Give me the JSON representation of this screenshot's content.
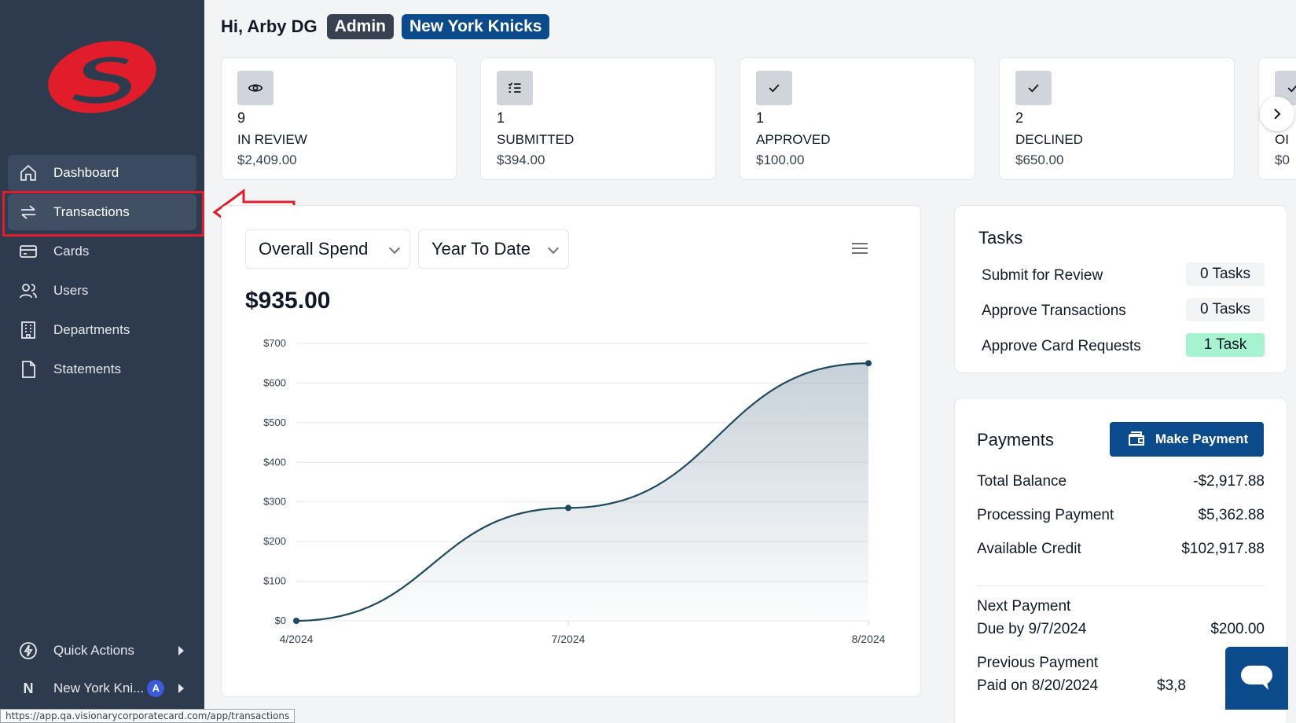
{
  "sidebar": {
    "nav": [
      {
        "label": "Dashboard",
        "icon": "home-icon"
      },
      {
        "label": "Transactions",
        "icon": "swap-arrows-icon"
      },
      {
        "label": "Cards",
        "icon": "card-icon"
      },
      {
        "label": "Users",
        "icon": "users-icon"
      },
      {
        "label": "Departments",
        "icon": "building-icon"
      },
      {
        "label": "Statements",
        "icon": "document-icon"
      }
    ],
    "quick_actions": "Quick Actions",
    "org_initial": "N",
    "org_name": "New York Kni...",
    "org_badge": "A"
  },
  "status_url": "https://app.qa.visionarycorporatecard.com/app/transactions",
  "header": {
    "greeting": "Hi, Arby DG",
    "role": "Admin",
    "team": "New York Knicks"
  },
  "stats": [
    {
      "count": "9",
      "label": "IN REVIEW",
      "amount": "$2,409.00",
      "icon": "eye-icon"
    },
    {
      "count": "1",
      "label": "SUBMITTED",
      "amount": "$394.00",
      "icon": "list-check-icon"
    },
    {
      "count": "1",
      "label": "APPROVED",
      "amount": "$100.00",
      "icon": "check-icon"
    },
    {
      "count": "2",
      "label": "DECLINED",
      "amount": "$650.00",
      "icon": "check-icon"
    },
    {
      "count": "",
      "label": "OI",
      "amount": "$0",
      "icon": "check-icon"
    }
  ],
  "spend": {
    "metric_select": "Overall Spend",
    "period_select": "Year To Date",
    "total": "$935.00"
  },
  "chart_data": {
    "type": "area",
    "x": [
      "4/2024",
      "7/2024",
      "8/2024"
    ],
    "values": [
      0,
      285,
      650
    ],
    "yticks": [
      "$0",
      "$100",
      "$200",
      "$300",
      "$400",
      "$500",
      "$600",
      "$700"
    ],
    "ylim": [
      0,
      700
    ],
    "grid": true,
    "line_color": "#1d4a5e"
  },
  "tasks": {
    "title": "Tasks",
    "items": [
      {
        "label": "Submit for Review",
        "value": "0 Tasks"
      },
      {
        "label": "Approve Transactions",
        "value": "0 Tasks"
      },
      {
        "label": "Approve Card Requests",
        "value": "1 Task"
      }
    ]
  },
  "payments": {
    "title": "Payments",
    "button": "Make Payment",
    "rows": [
      {
        "label": "Total Balance",
        "value": "-$2,917.88"
      },
      {
        "label": "Processing Payment",
        "value": "$5,362.88"
      },
      {
        "label": "Available Credit",
        "value": "$102,917.88"
      }
    ],
    "next_label": "Next Payment",
    "next_due": "Due by 9/7/2024",
    "next_amount": "$200.00",
    "prev_label": "Previous Payment",
    "prev_paid": "Paid on 8/20/2024",
    "prev_amount": "$3,8"
  },
  "colors": {
    "sidebar": "#2e3b4e",
    "brand_red": "#e11d2b",
    "primary": "#0b4a8b"
  }
}
